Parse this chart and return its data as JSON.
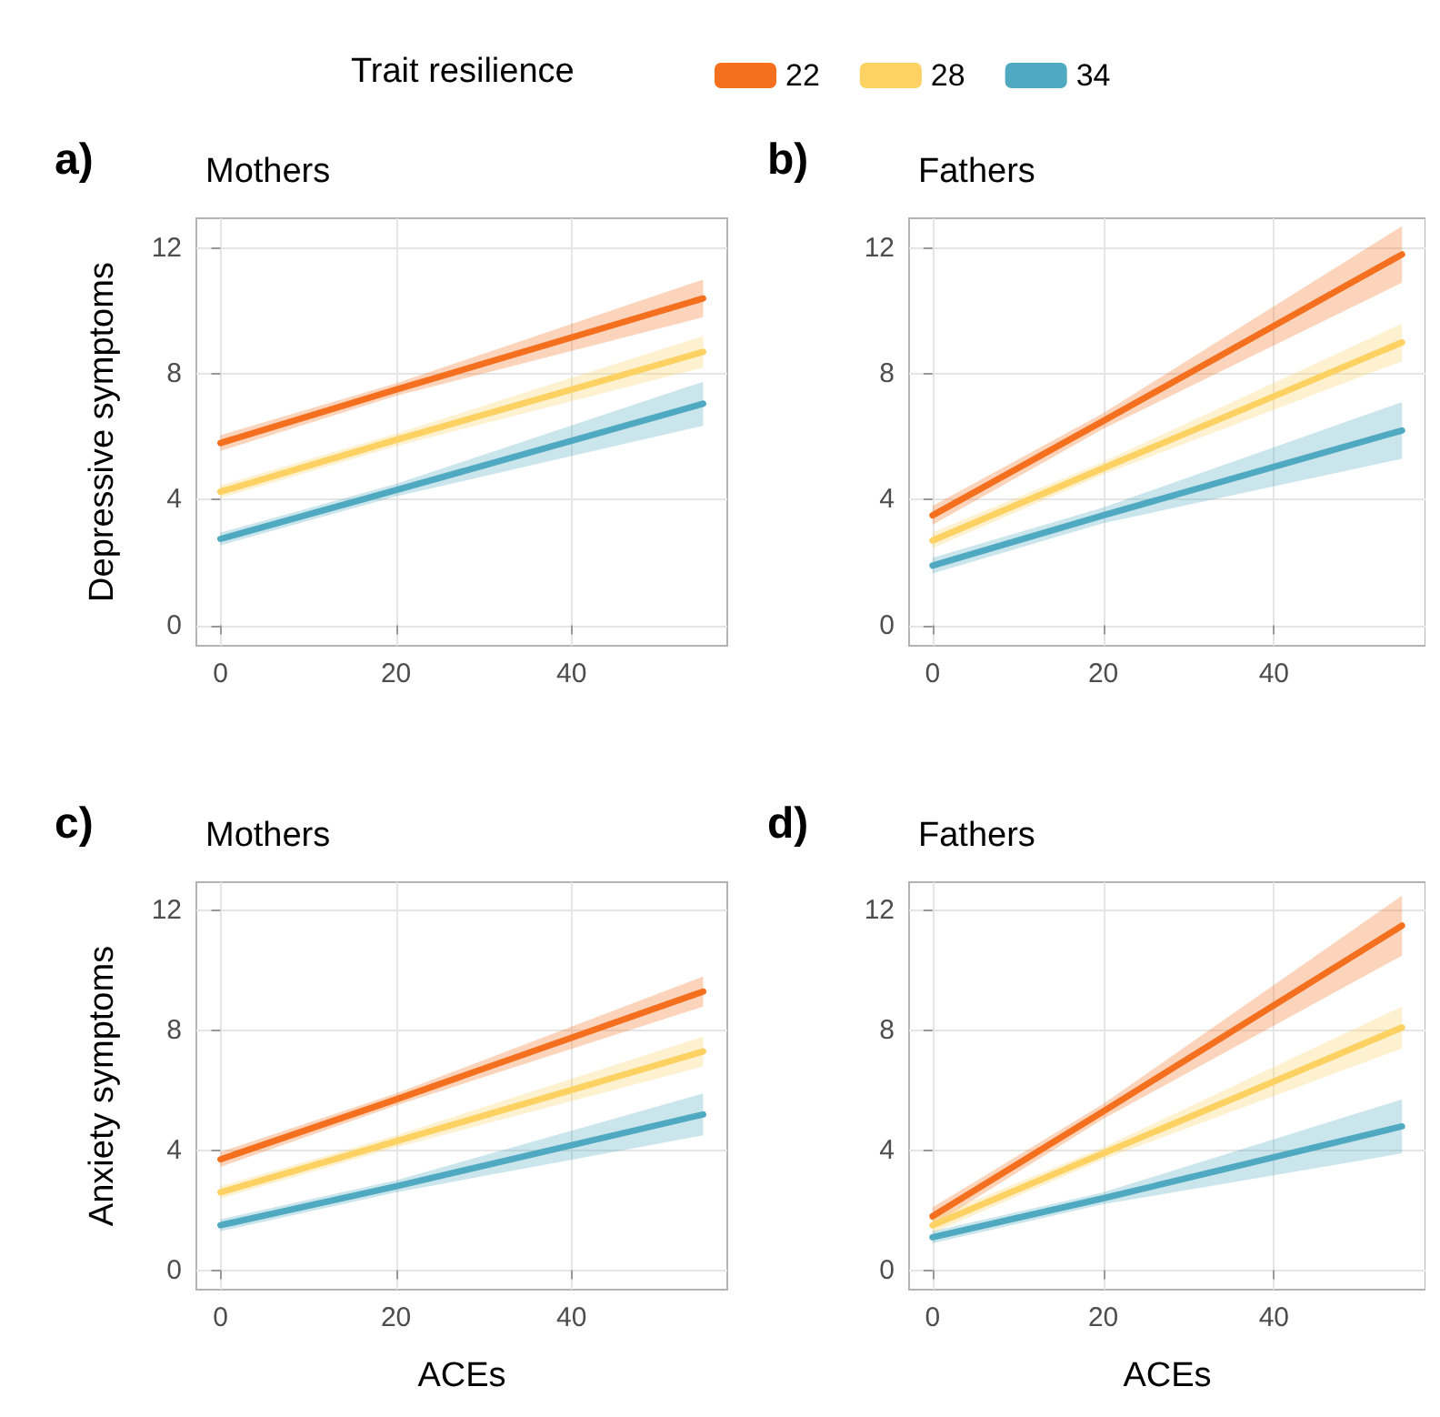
{
  "chart_data": [
    {
      "type": "line",
      "title": "Mothers",
      "annotations": [
        "a)"
      ],
      "ylabel": "Depressive symptoms",
      "legend_title": "Trait resilience",
      "legend": "top",
      "grid": true,
      "xlim": [
        -2.75,
        57.75
      ],
      "xticks": [
        0,
        20,
        40
      ],
      "ylim": [
        -0.65,
        12.95
      ],
      "yticks": [
        0,
        4,
        8,
        12
      ],
      "series": [
        {
          "name": "22",
          "color": "#f4701f",
          "x": [
            0,
            20,
            55
          ],
          "values": [
            5.8,
            7.5,
            10.4
          ],
          "lower": [
            5.55,
            7.3,
            9.8
          ],
          "upper": [
            6.05,
            7.7,
            11.0
          ]
        },
        {
          "name": "28",
          "color": "#fdd262",
          "x": [
            0,
            20,
            55
          ],
          "values": [
            4.25,
            5.9,
            8.7
          ],
          "lower": [
            4.05,
            5.7,
            8.2
          ],
          "upper": [
            4.45,
            6.1,
            9.2
          ]
        },
        {
          "name": "34",
          "color": "#4fa9c1",
          "x": [
            0,
            20,
            55
          ],
          "values": [
            2.75,
            4.3,
            7.05
          ],
          "lower": [
            2.55,
            4.1,
            6.35
          ],
          "upper": [
            2.95,
            4.5,
            7.75
          ]
        }
      ]
    },
    {
      "type": "line",
      "title": "Fathers",
      "annotations": [
        "b)"
      ],
      "grid": true,
      "xlim": [
        -2.75,
        57.75
      ],
      "xticks": [
        0,
        20,
        40
      ],
      "ylim": [
        -0.65,
        12.95
      ],
      "yticks": [
        0,
        4,
        8,
        12
      ],
      "series": [
        {
          "name": "22",
          "color": "#f4701f",
          "x": [
            0,
            20,
            55
          ],
          "values": [
            3.5,
            6.5,
            11.8
          ],
          "lower": [
            3.2,
            6.25,
            10.9
          ],
          "upper": [
            3.8,
            6.75,
            12.7
          ]
        },
        {
          "name": "28",
          "color": "#fdd262",
          "x": [
            0,
            20,
            55
          ],
          "values": [
            2.7,
            5.0,
            9.0
          ],
          "lower": [
            2.45,
            4.8,
            8.4
          ],
          "upper": [
            2.95,
            5.2,
            9.6
          ]
        },
        {
          "name": "34",
          "color": "#4fa9c1",
          "x": [
            0,
            20,
            55
          ],
          "values": [
            1.9,
            3.5,
            6.2
          ],
          "lower": [
            1.65,
            3.25,
            5.3
          ],
          "upper": [
            2.15,
            3.75,
            7.1
          ]
        }
      ]
    },
    {
      "type": "line",
      "title": "Mothers",
      "annotations": [
        "c)"
      ],
      "ylabel": "Anxiety symptoms",
      "xlabel": "ACEs",
      "grid": true,
      "xlim": [
        -2.75,
        57.75
      ],
      "xticks": [
        0,
        20,
        40
      ],
      "ylim": [
        -0.65,
        12.95
      ],
      "yticks": [
        0,
        4,
        8,
        12
      ],
      "series": [
        {
          "name": "22",
          "color": "#f4701f",
          "x": [
            0,
            20,
            55
          ],
          "values": [
            3.7,
            5.7,
            9.3
          ],
          "lower": [
            3.45,
            5.5,
            8.8
          ],
          "upper": [
            3.95,
            5.9,
            9.8
          ]
        },
        {
          "name": "28",
          "color": "#fdd262",
          "x": [
            0,
            20,
            55
          ],
          "values": [
            2.6,
            4.3,
            7.3
          ],
          "lower": [
            2.4,
            4.1,
            6.8
          ],
          "upper": [
            2.8,
            4.5,
            7.8
          ]
        },
        {
          "name": "34",
          "color": "#4fa9c1",
          "x": [
            0,
            20,
            55
          ],
          "values": [
            1.5,
            2.8,
            5.2
          ],
          "lower": [
            1.3,
            2.6,
            4.5
          ],
          "upper": [
            1.7,
            3.0,
            5.9
          ]
        }
      ]
    },
    {
      "type": "line",
      "title": "Fathers",
      "annotations": [
        "d)"
      ],
      "xlabel": "ACEs",
      "grid": true,
      "xlim": [
        -2.75,
        57.75
      ],
      "xticks": [
        0,
        20,
        40
      ],
      "ylim": [
        -0.65,
        12.95
      ],
      "yticks": [
        0,
        4,
        8,
        12
      ],
      "series": [
        {
          "name": "22",
          "color": "#f4701f",
          "x": [
            0,
            20,
            55
          ],
          "values": [
            1.8,
            5.3,
            11.5
          ],
          "lower": [
            1.5,
            5.05,
            10.5
          ],
          "upper": [
            2.1,
            5.55,
            12.5
          ]
        },
        {
          "name": "28",
          "color": "#fdd262",
          "x": [
            0,
            20,
            55
          ],
          "values": [
            1.5,
            3.9,
            8.1
          ],
          "lower": [
            1.25,
            3.7,
            7.4
          ],
          "upper": [
            1.75,
            4.1,
            8.8
          ]
        },
        {
          "name": "34",
          "color": "#4fa9c1",
          "x": [
            0,
            20,
            55
          ],
          "values": [
            1.1,
            2.4,
            4.8
          ],
          "lower": [
            0.9,
            2.2,
            3.9
          ],
          "upper": [
            1.3,
            2.6,
            5.7
          ]
        }
      ]
    }
  ]
}
